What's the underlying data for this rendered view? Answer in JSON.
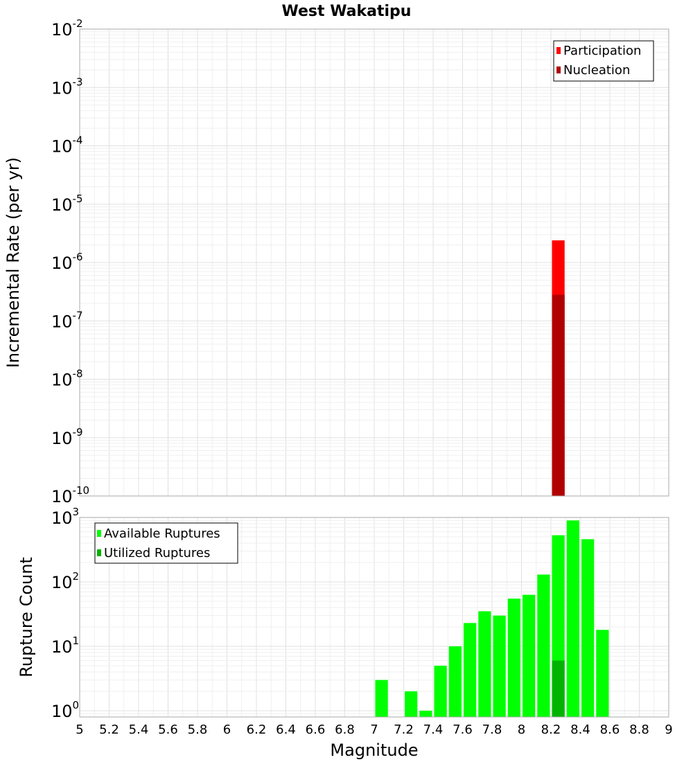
{
  "title": "West Wakatipu",
  "colors": {
    "participation": "#ff0000",
    "nucleation": "#b00000",
    "available": "#00ff00",
    "utilized": "#00b400"
  },
  "chart_data": [
    {
      "type": "bar",
      "title": "West Wakatipu",
      "xlabel": "Magnitude",
      "ylabel": "Incremental Rate (per yr)",
      "yscale": "log",
      "xlim": [
        5,
        9
      ],
      "ylim": [
        1e-10,
        0.01
      ],
      "ytick_exponents": [
        "-2",
        "-3",
        "-4",
        "-5",
        "-6",
        "-7",
        "-8",
        "-9",
        "-10"
      ],
      "bar_width": 0.1,
      "legend": [
        "Participation",
        "Nucleation"
      ],
      "legend_position": "top-right",
      "series": [
        {
          "name": "Participation",
          "x": [
            8.25
          ],
          "values": [
            2.4e-06
          ]
        },
        {
          "name": "Nucleation",
          "x": [
            8.25
          ],
          "values": [
            2.8e-07
          ]
        }
      ]
    },
    {
      "type": "bar",
      "xlabel": "Magnitude",
      "ylabel": "Rupture Count",
      "yscale": "log",
      "xlim": [
        5,
        9
      ],
      "ylim": [
        0.8,
        1000
      ],
      "ytick_exponents": [
        "3",
        "2",
        "1",
        "0"
      ],
      "bar_width": 0.1,
      "legend": [
        "Available Ruptures",
        "Utilized Ruptures"
      ],
      "legend_position": "top-left",
      "series": [
        {
          "name": "Available Ruptures",
          "x": [
            7.05,
            7.25,
            7.35,
            7.45,
            7.55,
            7.65,
            7.75,
            7.85,
            7.95,
            8.05,
            8.15,
            8.25,
            8.35,
            8.45,
            8.55
          ],
          "values": [
            3,
            2,
            1,
            5,
            10,
            23,
            35,
            30,
            55,
            63,
            130,
            530,
            900,
            460,
            18
          ]
        },
        {
          "name": "Utilized Ruptures",
          "x": [
            8.25
          ],
          "values": [
            6
          ]
        }
      ]
    }
  ],
  "x_ticks": [
    "5",
    "5.2",
    "5.4",
    "5.6",
    "5.8",
    "6",
    "6.2",
    "6.4",
    "6.6",
    "6.8",
    "7",
    "7.2",
    "7.4",
    "7.6",
    "7.8",
    "8",
    "8.2",
    "8.4",
    "8.6",
    "8.8",
    "9"
  ]
}
